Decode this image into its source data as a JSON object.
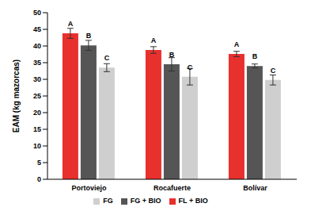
{
  "chart_data": {
    "type": "bar",
    "y_label": "EAM (kg mazorcas)",
    "categories": [
      "Portoviejo",
      "Rocafuerte",
      "Bolívar"
    ],
    "series": [
      {
        "name": "FL + BIO",
        "color": "#e8302d",
        "values": [
          43.8,
          38.8,
          37.6
        ],
        "errors": [
          1.5,
          1.0,
          0.8
        ],
        "letters": [
          "A",
          "A",
          "A"
        ]
      },
      {
        "name": "FG + BIO",
        "color": "#555555",
        "values": [
          40.2,
          34.5,
          34.0
        ],
        "errors": [
          1.5,
          2.0,
          0.6
        ],
        "letters": [
          "B",
          "B",
          "B"
        ]
      },
      {
        "name": "FG",
        "color": "#cfcfcf",
        "values": [
          33.5,
          30.8,
          29.8
        ],
        "errors": [
          1.2,
          2.5,
          1.5
        ],
        "letters": [
          "C",
          "C",
          "C"
        ]
      }
    ],
    "ylim": [
      0,
      50
    ],
    "yticks": [
      0,
      5,
      10,
      15,
      20,
      25,
      30,
      35,
      40,
      45,
      50
    ],
    "grid": false,
    "legend": "bottom"
  }
}
